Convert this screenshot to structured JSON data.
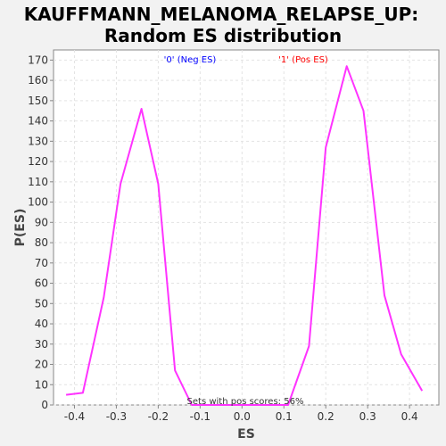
{
  "chart_data": {
    "type": "line",
    "title_line1": "KAUFFMANN_MELANOMA_RELAPSE_UP:",
    "title_line2": "Random ES distribution",
    "xlabel": "ES",
    "ylabel": "P(ES)",
    "xlim": [
      -0.45,
      0.47
    ],
    "ylim": [
      0,
      175
    ],
    "xticks": [
      -0.4,
      -0.3,
      -0.2,
      -0.1,
      0.0,
      0.1,
      0.2,
      0.3,
      0.4
    ],
    "xtick_labels": [
      "-0.4",
      "-0.3",
      "-0.2",
      "-0.1",
      "0.0",
      "0.1",
      "0.2",
      "0.3",
      "0.4"
    ],
    "yticks": [
      0,
      10,
      20,
      30,
      40,
      50,
      60,
      70,
      80,
      90,
      100,
      110,
      120,
      130,
      140,
      150,
      160,
      170
    ],
    "ytick_labels": [
      "0",
      "10",
      "20",
      "30",
      "40",
      "50",
      "60",
      "70",
      "80",
      "90",
      "100",
      "110",
      "120",
      "130",
      "140",
      "150",
      "160",
      "170"
    ],
    "grid": true,
    "annotations": {
      "neg_label": "'0' (Neg ES)",
      "pos_label": "'1' (Pos ES)",
      "footer": "Sets with pos scores: 56%"
    },
    "series": [
      {
        "color": "#ff33ff",
        "x": [
          -0.42,
          -0.38,
          -0.33,
          -0.29,
          -0.24,
          -0.2,
          -0.16,
          -0.12,
          -0.07,
          -0.03,
          0.01,
          0.05,
          0.09,
          0.11,
          0.16,
          0.2,
          0.25,
          0.29,
          0.34,
          0.38,
          0.43
        ],
        "y": [
          5,
          6,
          53,
          109,
          146,
          109,
          17,
          0,
          0,
          0,
          0,
          0,
          0,
          0,
          29,
          127,
          167,
          145,
          54,
          25,
          7
        ]
      }
    ]
  }
}
